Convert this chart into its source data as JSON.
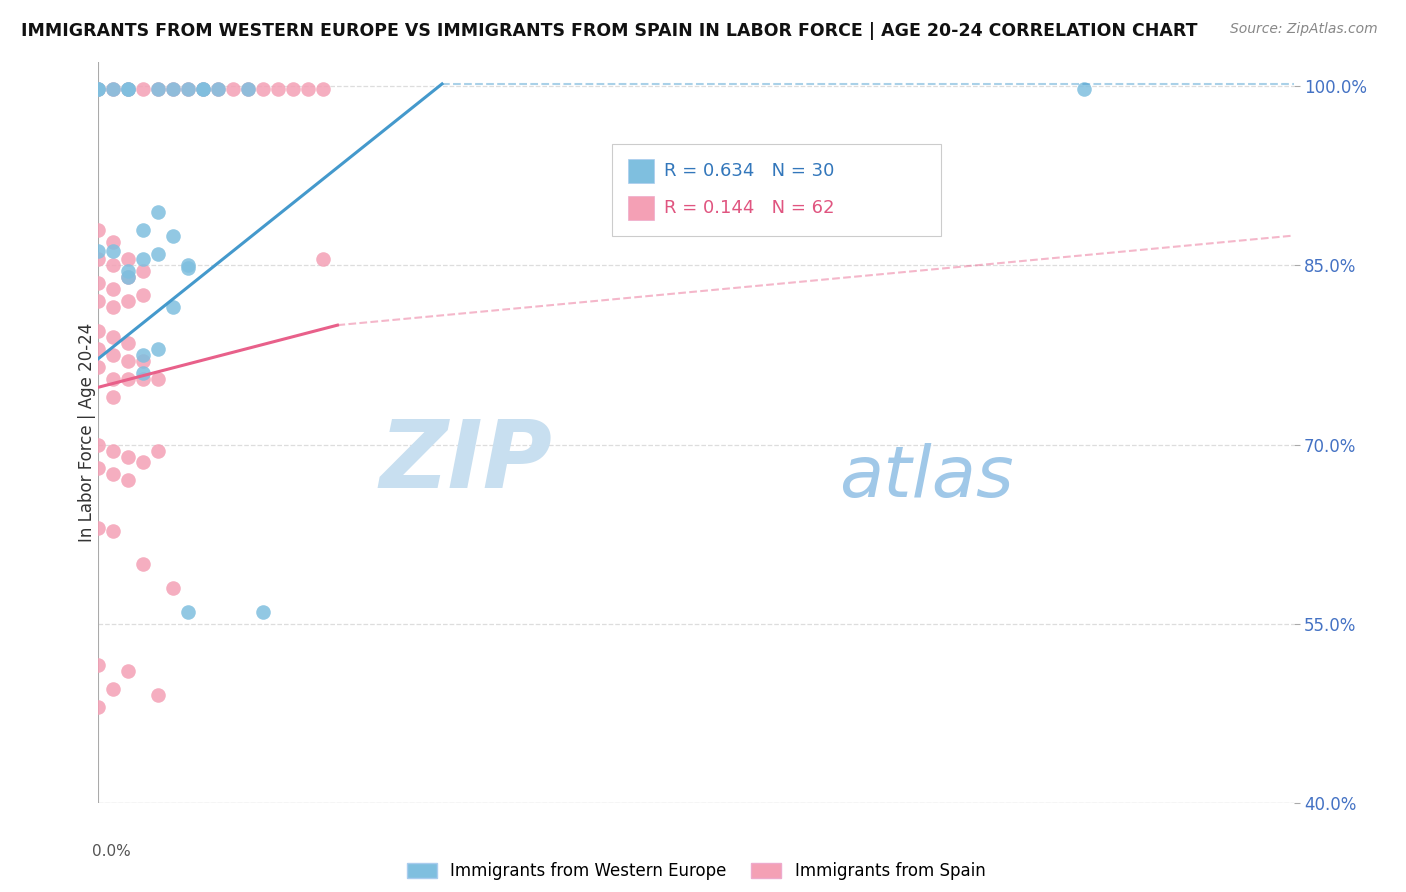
{
  "title": "IMMIGRANTS FROM WESTERN EUROPE VS IMMIGRANTS FROM SPAIN IN LABOR FORCE | AGE 20-24 CORRELATION CHART",
  "source": "Source: ZipAtlas.com",
  "ylabel": "In Labor Force | Age 20-24",
  "xlim": [
    0.0,
    0.4
  ],
  "ylim": [
    0.4,
    1.02
  ],
  "ytick_positions": [
    0.4,
    0.55,
    0.7,
    0.85,
    1.0
  ],
  "ytick_labels": [
    "40.0%",
    "55.0%",
    "70.0%",
    "85.0%",
    "100.0%"
  ],
  "blue_R": 0.634,
  "blue_N": 30,
  "pink_R": 0.144,
  "pink_N": 62,
  "blue_color": "#7fbfdf",
  "pink_color": "#f4a0b5",
  "blue_line_color": "#4499cc",
  "pink_line_color": "#e8608a",
  "grid_color": "#dddddd",
  "background_color": "#ffffff",
  "watermark_zip_color": "#c8dff0",
  "watermark_atlas_color": "#a0c8e8",
  "blue_line_solid": [
    [
      0.0,
      0.772
    ],
    [
      0.115,
      1.002
    ]
  ],
  "blue_line_dashed": [
    [
      0.115,
      1.002
    ],
    [
      0.4,
      1.002
    ]
  ],
  "pink_line_solid": [
    [
      0.0,
      0.748
    ],
    [
      0.08,
      0.8
    ]
  ],
  "pink_line_dashed": [
    [
      0.08,
      0.8
    ],
    [
      0.4,
      0.875
    ]
  ],
  "blue_points": [
    [
      0.0,
      0.998
    ],
    [
      0.0,
      0.998
    ],
    [
      0.005,
      0.998
    ],
    [
      0.01,
      0.998
    ],
    [
      0.01,
      0.998
    ],
    [
      0.02,
      0.998
    ],
    [
      0.025,
      0.998
    ],
    [
      0.03,
      0.998
    ],
    [
      0.035,
      0.998
    ],
    [
      0.035,
      0.998
    ],
    [
      0.04,
      0.998
    ],
    [
      0.05,
      0.998
    ],
    [
      0.0,
      0.862
    ],
    [
      0.005,
      0.862
    ],
    [
      0.01,
      0.845
    ],
    [
      0.01,
      0.84
    ],
    [
      0.015,
      0.88
    ],
    [
      0.015,
      0.855
    ],
    [
      0.02,
      0.895
    ],
    [
      0.02,
      0.86
    ],
    [
      0.025,
      0.875
    ],
    [
      0.03,
      0.848
    ],
    [
      0.03,
      0.85
    ],
    [
      0.025,
      0.815
    ],
    [
      0.02,
      0.78
    ],
    [
      0.015,
      0.775
    ],
    [
      0.015,
      0.76
    ],
    [
      0.03,
      0.56
    ],
    [
      0.055,
      0.56
    ],
    [
      0.33,
      0.998
    ]
  ],
  "pink_points": [
    [
      0.0,
      0.998
    ],
    [
      0.005,
      0.998
    ],
    [
      0.01,
      0.998
    ],
    [
      0.015,
      0.998
    ],
    [
      0.02,
      0.998
    ],
    [
      0.025,
      0.998
    ],
    [
      0.03,
      0.998
    ],
    [
      0.035,
      0.998
    ],
    [
      0.04,
      0.998
    ],
    [
      0.045,
      0.998
    ],
    [
      0.05,
      0.998
    ],
    [
      0.055,
      0.998
    ],
    [
      0.06,
      0.998
    ],
    [
      0.065,
      0.998
    ],
    [
      0.07,
      0.998
    ],
    [
      0.075,
      0.998
    ],
    [
      0.0,
      0.88
    ],
    [
      0.0,
      0.855
    ],
    [
      0.0,
      0.835
    ],
    [
      0.0,
      0.82
    ],
    [
      0.005,
      0.87
    ],
    [
      0.005,
      0.85
    ],
    [
      0.005,
      0.83
    ],
    [
      0.005,
      0.815
    ],
    [
      0.01,
      0.855
    ],
    [
      0.01,
      0.84
    ],
    [
      0.01,
      0.82
    ],
    [
      0.015,
      0.845
    ],
    [
      0.015,
      0.825
    ],
    [
      0.0,
      0.795
    ],
    [
      0.0,
      0.78
    ],
    [
      0.0,
      0.765
    ],
    [
      0.005,
      0.79
    ],
    [
      0.005,
      0.775
    ],
    [
      0.005,
      0.755
    ],
    [
      0.005,
      0.74
    ],
    [
      0.01,
      0.785
    ],
    [
      0.01,
      0.77
    ],
    [
      0.01,
      0.755
    ],
    [
      0.015,
      0.77
    ],
    [
      0.015,
      0.755
    ],
    [
      0.02,
      0.755
    ],
    [
      0.0,
      0.7
    ],
    [
      0.0,
      0.68
    ],
    [
      0.005,
      0.695
    ],
    [
      0.005,
      0.675
    ],
    [
      0.01,
      0.69
    ],
    [
      0.01,
      0.67
    ],
    [
      0.015,
      0.685
    ],
    [
      0.02,
      0.695
    ],
    [
      0.0,
      0.63
    ],
    [
      0.005,
      0.628
    ],
    [
      0.015,
      0.6
    ],
    [
      0.025,
      0.58
    ],
    [
      0.0,
      0.515
    ],
    [
      0.0,
      0.48
    ],
    [
      0.005,
      0.495
    ],
    [
      0.01,
      0.51
    ],
    [
      0.02,
      0.49
    ],
    [
      0.075,
      0.855
    ]
  ],
  "figsize": [
    14.06,
    8.92
  ],
  "dpi": 100
}
